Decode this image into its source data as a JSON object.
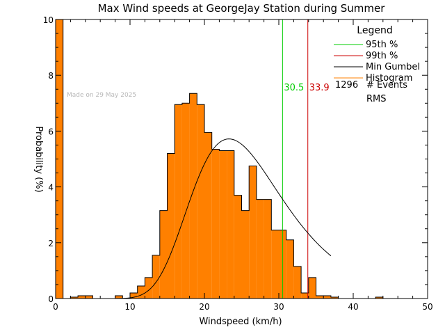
{
  "chart_data": {
    "type": "bar",
    "title": "Max Wind speeds at GeorgeJay Station during Summer",
    "xlabel": "Windspeed (km/h)",
    "ylabel": "Probability  (%)",
    "xlim": [
      0,
      50
    ],
    "ylim": [
      0,
      10
    ],
    "x_ticks": [
      0,
      10,
      20,
      30,
      40,
      50
    ],
    "y_ticks": [
      0,
      2,
      4,
      6,
      8,
      10
    ],
    "grid": false,
    "watermark": "Made on 29 May 2025",
    "bin_width": 1,
    "histogram": {
      "color": "#ff8000",
      "bins": [
        [
          0,
          10.0
        ],
        [
          2,
          0.05
        ],
        [
          3,
          0.1
        ],
        [
          4,
          0.1
        ],
        [
          8,
          0.1
        ],
        [
          10,
          0.2
        ],
        [
          11,
          0.45
        ],
        [
          12,
          0.75
        ],
        [
          13,
          1.55
        ],
        [
          14,
          3.15
        ],
        [
          15,
          5.2
        ],
        [
          16,
          6.95
        ],
        [
          17,
          7.0
        ],
        [
          18,
          7.35
        ],
        [
          19,
          6.95
        ],
        [
          20,
          5.95
        ],
        [
          21,
          5.35
        ],
        [
          22,
          5.3
        ],
        [
          23,
          5.3
        ],
        [
          24,
          3.7
        ],
        [
          25,
          3.15
        ],
        [
          26,
          4.75
        ],
        [
          27,
          3.55
        ],
        [
          28,
          3.55
        ],
        [
          29,
          2.45
        ],
        [
          30,
          2.45
        ],
        [
          31,
          2.1
        ],
        [
          32,
          1.15
        ],
        [
          33,
          0.2
        ],
        [
          34,
          0.75
        ],
        [
          35,
          0.1
        ],
        [
          36,
          0.1
        ],
        [
          37,
          0.05
        ],
        [
          43,
          0.05
        ]
      ]
    },
    "gumbel": {
      "color": "#000000",
      "mode": 23.3,
      "beta": 6.2,
      "peak": 5.72,
      "x_range": [
        0,
        37
      ]
    },
    "thresholds": [
      {
        "name": "95th %",
        "value": 30.5,
        "label": "30.5",
        "color": "#00cc00"
      },
      {
        "name": "99th %",
        "value": 33.9,
        "label": "33.9",
        "color": "#cc0000"
      }
    ],
    "legend": {
      "title": "Legend",
      "position": "top-right",
      "entries": [
        {
          "label": "95th %",
          "color": "#00cc00"
        },
        {
          "label": "99th %",
          "color": "#cc0000"
        },
        {
          "label": "Min Gumbel",
          "color": "#000000"
        },
        {
          "label": "Histogram",
          "color": "#ff8000"
        }
      ],
      "events_count": "1296",
      "events_label": "# Events",
      "rms_label": "RMS"
    }
  }
}
